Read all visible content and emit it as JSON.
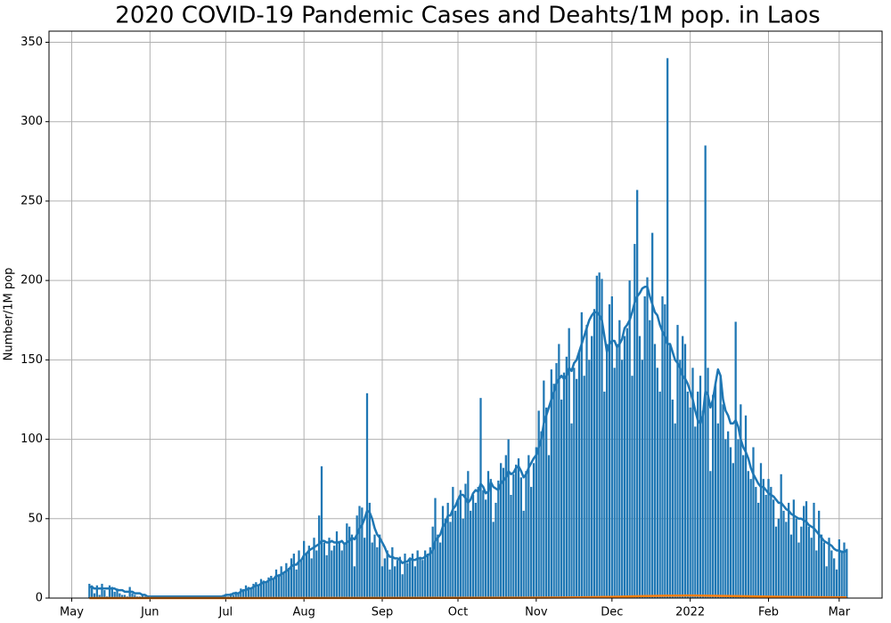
{
  "chart_data": {
    "type": "bar",
    "title": "2020 COVID-19 Pandemic Cases and Deahts/1M pop. in Laos",
    "y_label": "Number/1M pop",
    "xlim": [
      -9,
      321
    ],
    "xticks": [
      {
        "value": 0,
        "label": "May"
      },
      {
        "value": 31,
        "label": "Jun"
      },
      {
        "value": 61,
        "label": "Jul"
      },
      {
        "value": 92,
        "label": "Aug"
      },
      {
        "value": 123,
        "label": "Sep"
      },
      {
        "value": 153,
        "label": "Oct"
      },
      {
        "value": 184,
        "label": "Nov"
      },
      {
        "value": 214,
        "label": "Dec"
      },
      {
        "value": 245,
        "label": "2022"
      },
      {
        "value": 276,
        "label": "Feb"
      },
      {
        "value": 304,
        "label": "Mar"
      }
    ],
    "ylim": [
      0,
      357
    ],
    "yticks": [
      0,
      50,
      100,
      150,
      200,
      250,
      300,
      350
    ],
    "grid": true,
    "x": [
      7,
      8,
      9,
      10,
      11,
      12,
      13,
      14,
      15,
      16,
      17,
      18,
      19,
      20,
      21,
      22,
      23,
      24,
      25,
      26,
      27,
      28,
      29,
      30,
      31,
      32,
      33,
      34,
      35,
      36,
      37,
      38,
      39,
      40,
      41,
      42,
      43,
      44,
      45,
      46,
      47,
      48,
      49,
      50,
      51,
      52,
      53,
      54,
      55,
      56,
      57,
      58,
      59,
      60,
      61,
      62,
      63,
      64,
      65,
      66,
      67,
      68,
      69,
      70,
      71,
      72,
      73,
      74,
      75,
      76,
      77,
      78,
      79,
      80,
      81,
      82,
      83,
      84,
      85,
      86,
      87,
      88,
      89,
      90,
      91,
      92,
      93,
      94,
      95,
      96,
      97,
      98,
      99,
      100,
      101,
      102,
      103,
      104,
      105,
      106,
      107,
      108,
      109,
      110,
      111,
      112,
      113,
      114,
      115,
      116,
      117,
      118,
      119,
      120,
      121,
      122,
      123,
      124,
      125,
      126,
      127,
      128,
      129,
      130,
      131,
      132,
      133,
      134,
      135,
      136,
      137,
      138,
      139,
      140,
      141,
      142,
      143,
      144,
      145,
      146,
      147,
      148,
      149,
      150,
      151,
      152,
      153,
      154,
      155,
      156,
      157,
      158,
      159,
      160,
      161,
      162,
      163,
      164,
      165,
      166,
      167,
      168,
      169,
      170,
      171,
      172,
      173,
      174,
      175,
      176,
      177,
      178,
      179,
      180,
      181,
      182,
      183,
      184,
      185,
      186,
      187,
      188,
      189,
      190,
      191,
      192,
      193,
      194,
      195,
      196,
      197,
      198,
      199,
      200,
      201,
      202,
      203,
      204,
      205,
      206,
      207,
      208,
      209,
      210,
      211,
      212,
      213,
      214,
      215,
      216,
      217,
      218,
      219,
      220,
      221,
      222,
      223,
      224,
      225,
      226,
      227,
      228,
      229,
      230,
      231,
      232,
      233,
      234,
      235,
      236,
      237,
      238,
      239,
      240,
      241,
      242,
      243,
      244,
      245,
      246,
      247,
      248,
      249,
      250,
      251,
      252,
      253,
      254,
      255,
      256,
      257,
      258,
      259,
      260,
      261,
      262,
      263,
      264,
      265,
      266,
      267,
      268,
      269,
      270,
      271,
      272,
      273,
      274,
      275,
      276,
      277,
      278,
      279,
      280,
      281,
      282,
      283,
      284,
      285,
      286,
      287,
      288,
      289,
      290,
      291,
      292,
      293,
      294,
      295,
      296,
      297,
      298,
      299,
      300,
      301,
      302,
      303,
      304,
      305,
      306,
      307
    ],
    "series": [
      {
        "type": "bar",
        "color": "#1f77b4",
        "values": [
          9,
          8,
          3,
          8,
          2,
          9,
          5,
          1,
          8,
          7,
          4,
          6,
          3,
          2,
          2,
          1,
          7,
          3,
          2,
          1,
          1,
          2,
          1,
          0,
          0,
          1,
          0,
          1,
          1,
          0,
          0,
          1,
          1,
          0,
          1,
          0,
          1,
          1,
          0,
          1,
          0,
          1,
          1,
          0,
          1,
          1,
          0,
          1,
          1,
          0,
          1,
          1,
          1,
          2,
          2,
          1,
          3,
          2,
          4,
          3,
          6,
          5,
          8,
          7,
          6,
          9,
          10,
          8,
          12,
          11,
          10,
          13,
          14,
          12,
          18,
          15,
          20,
          16,
          22,
          19,
          25,
          28,
          18,
          30,
          24,
          36,
          28,
          33,
          25,
          38,
          30,
          52,
          83,
          35,
          27,
          38,
          30,
          33,
          42,
          36,
          30,
          35,
          47,
          45,
          40,
          20,
          52,
          58,
          57,
          38,
          129,
          60,
          35,
          40,
          32,
          40,
          20,
          25,
          30,
          18,
          32,
          20,
          24,
          26,
          15,
          28,
          22,
          25,
          28,
          20,
          30,
          26,
          24,
          30,
          28,
          32,
          45,
          63,
          40,
          35,
          58,
          50,
          60,
          48,
          70,
          55,
          62,
          68,
          50,
          72,
          80,
          55,
          65,
          60,
          70,
          126,
          68,
          62,
          80,
          75,
          48,
          60,
          74,
          85,
          82,
          90,
          100,
          65,
          78,
          84,
          88,
          76,
          55,
          80,
          90,
          70,
          85,
          95,
          118,
          105,
          137,
          120,
          90,
          144,
          135,
          148,
          160,
          125,
          142,
          152,
          170,
          110,
          145,
          138,
          155,
          180,
          140,
          172,
          150,
          165,
          182,
          203,
          205,
          201,
          130,
          160,
          185,
          190,
          145,
          160,
          175,
          150,
          165,
          170,
          200,
          140,
          223,
          257,
          165,
          150,
          190,
          202,
          175,
          230,
          160,
          145,
          130,
          190,
          185,
          340,
          160,
          125,
          110,
          172,
          150,
          165,
          160,
          130,
          120,
          145,
          108,
          130,
          140,
          118,
          285,
          145,
          80,
          128,
          135,
          110,
          140,
          122,
          100,
          105,
          95,
          85,
          174,
          100,
          122,
          90,
          115,
          80,
          75,
          95,
          70,
          60,
          85,
          75,
          65,
          75,
          70,
          62,
          45,
          50,
          78,
          55,
          48,
          60,
          40,
          62,
          50,
          35,
          45,
          58,
          61,
          45,
          38,
          60,
          30,
          55,
          40,
          35,
          20,
          38,
          30,
          25,
          18,
          37,
          30,
          35,
          31
        ]
      },
      {
        "type": "line",
        "color": "#1f77b4",
        "values": [
          7,
          7,
          6,
          6,
          6,
          6,
          6,
          6,
          6,
          6,
          6,
          5,
          5,
          5,
          4,
          4,
          4,
          4,
          3,
          3,
          3,
          2,
          2,
          1,
          1,
          1,
          1,
          1,
          1,
          1,
          1,
          1,
          1,
          1,
          1,
          1,
          1,
          1,
          1,
          1,
          1,
          1,
          1,
          1,
          1,
          1,
          1,
          1,
          1,
          1,
          1,
          1,
          1,
          1,
          2,
          2,
          2,
          3,
          3,
          3,
          4,
          5,
          5,
          6,
          6,
          7,
          8,
          8,
          9,
          10,
          10,
          11,
          12,
          12,
          14,
          14,
          15,
          16,
          17,
          18,
          20,
          21,
          21,
          23,
          24,
          27,
          28,
          30,
          31,
          32,
          33,
          34,
          36,
          36,
          35,
          35,
          36,
          35,
          35,
          35,
          36,
          34,
          35,
          36,
          38,
          37,
          40,
          44,
          46,
          50,
          55,
          54,
          50,
          44,
          40,
          38,
          35,
          32,
          28,
          26,
          26,
          25,
          25,
          24,
          22,
          23,
          23,
          25,
          24,
          24,
          25,
          25,
          25,
          26,
          27,
          28,
          30,
          36,
          38,
          40,
          45,
          47,
          52,
          52,
          56,
          58,
          62,
          65,
          65,
          63,
          60,
          62,
          66,
          68,
          67,
          72,
          70,
          66,
          67,
          73,
          70,
          69,
          68,
          72,
          74,
          76,
          80,
          78,
          79,
          82,
          83,
          80,
          76,
          78,
          82,
          85,
          88,
          90,
          95,
          100,
          110,
          115,
          120,
          125,
          130,
          135,
          138,
          140,
          138,
          140,
          145,
          143,
          148,
          150,
          155,
          160,
          165,
          170,
          175,
          178,
          180,
          180,
          178,
          175,
          165,
          155,
          160,
          162,
          162,
          158,
          160,
          163,
          170,
          172,
          175,
          180,
          186,
          190,
          192,
          195,
          196,
          196,
          190,
          185,
          180,
          178,
          172,
          168,
          165,
          160,
          160,
          155,
          150,
          148,
          145,
          140,
          138,
          135,
          130,
          125,
          118,
          112,
          110,
          115,
          130,
          128,
          120,
          125,
          135,
          144,
          140,
          125,
          118,
          115,
          110,
          110,
          112,
          108,
          100,
          95,
          92,
          88,
          82,
          78,
          75,
          72,
          70,
          70,
          68,
          66,
          65,
          64,
          62,
          60,
          60,
          58,
          56,
          55,
          53,
          52,
          51,
          50,
          50,
          49,
          48,
          46,
          45,
          44,
          42,
          40,
          38,
          36,
          35,
          34,
          33,
          31,
          30,
          30,
          29,
          29,
          30
        ]
      },
      {
        "type": "line",
        "color": "#ff7f0e",
        "x": [
          7,
          60,
          120,
          180,
          200,
          215,
          225,
          235,
          245,
          255,
          265,
          275,
          290,
          307
        ],
        "values": [
          0,
          0,
          0.1,
          0.2,
          0.4,
          0.8,
          1.2,
          1.5,
          1.6,
          1.4,
          1.2,
          0.9,
          0.6,
          0.4
        ]
      }
    ]
  }
}
